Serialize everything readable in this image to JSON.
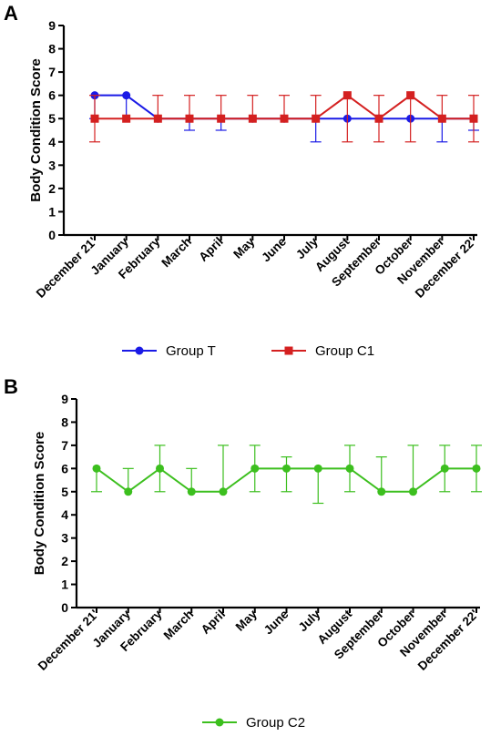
{
  "chart_data": [
    {
      "panel": "A",
      "type": "line",
      "ylabel": "Body Condition Score",
      "ylim": [
        0,
        9
      ],
      "yticks": [
        "0",
        "1",
        "2",
        "3",
        "4",
        "5",
        "6",
        "7",
        "8",
        "9"
      ],
      "categories": [
        "December 21'",
        "January",
        "February",
        "March",
        "April",
        "May",
        "June",
        "July",
        "August",
        "September",
        "October",
        "November",
        "December 22'"
      ],
      "legend_position": "bottom",
      "series": [
        {
          "name": "Group T",
          "color": "#1a1ae6",
          "marker": "circle",
          "values": [
            6,
            6,
            5,
            5,
            5,
            5,
            5,
            5,
            5,
            5,
            5,
            5,
            5
          ],
          "err_low": [
            5,
            5,
            5,
            4.5,
            4.5,
            5,
            5,
            4,
            5,
            5,
            5,
            4,
            4.5
          ],
          "err_high": [
            6,
            6,
            5,
            5,
            5,
            5,
            5,
            5,
            5,
            5,
            5,
            5,
            5
          ]
        },
        {
          "name": "Group C1",
          "color": "#d42020",
          "marker": "square",
          "values": [
            5,
            5,
            5,
            5,
            5,
            5,
            5,
            5,
            6,
            5,
            6,
            5,
            5
          ],
          "err_low": [
            4,
            5,
            5,
            5,
            5,
            5,
            5,
            5,
            4,
            4,
            4,
            5,
            4
          ],
          "err_high": [
            6,
            5,
            6,
            6,
            6,
            6,
            6,
            6,
            6,
            6,
            6,
            6,
            6
          ]
        }
      ]
    },
    {
      "panel": "B",
      "type": "line",
      "ylabel": "Body Condition Score",
      "ylim": [
        0,
        9
      ],
      "yticks": [
        "0",
        "1",
        "2",
        "3",
        "4",
        "5",
        "6",
        "7",
        "8",
        "9"
      ],
      "categories": [
        "December 21'",
        "January",
        "February",
        "March",
        "April",
        "May",
        "June",
        "July",
        "August",
        "September",
        "October",
        "November",
        "December 22'"
      ],
      "legend_position": "bottom",
      "series": [
        {
          "name": "Group C2",
          "color": "#3cbf1e",
          "marker": "circle",
          "values": [
            6,
            5,
            6,
            5,
            5,
            6,
            6,
            6,
            6,
            5,
            5,
            6,
            6
          ],
          "err_low": [
            5,
            5,
            5,
            5,
            5,
            5,
            5,
            4.5,
            5,
            5,
            5,
            5,
            5
          ],
          "err_high": [
            6,
            6,
            7,
            6,
            7,
            7,
            6.5,
            6,
            7,
            6.5,
            7,
            7,
            7
          ]
        }
      ]
    }
  ]
}
